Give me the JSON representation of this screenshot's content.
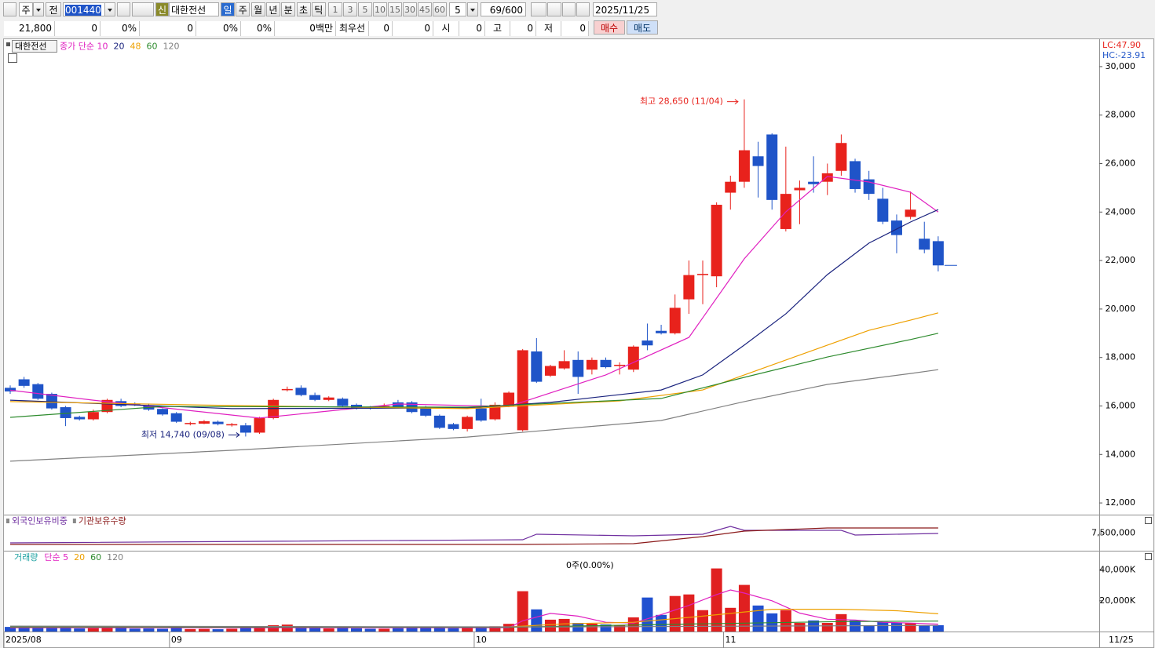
{
  "toolbar": {
    "period": "주",
    "prev": "전",
    "code": "001440",
    "new_tag": "신",
    "name": "대한전선",
    "intervals": [
      "일",
      "주",
      "월",
      "년",
      "분",
      "초",
      "틱"
    ],
    "steps": [
      "1",
      "3",
      "5",
      "10",
      "15",
      "30",
      "45",
      "60"
    ],
    "count": "5",
    "range": "69/600",
    "date": "2025/11/25"
  },
  "quote": {
    "fields": [
      "21,800",
      "0",
      "0%",
      "0",
      "0%",
      "0%",
      "0백만",
      "최우선",
      "0",
      "0",
      "시",
      "0",
      "고",
      "0",
      "저",
      "0"
    ],
    "buy": "매수",
    "sell": "매도"
  },
  "chart_data": [
    {
      "type": "candlestick",
      "legend_title": "대한전선",
      "lc": "LC:47.90",
      "hc": "HC:-23.91",
      "high_note": "최고 28,650 (11/04)",
      "low_note": "최저 14,740 (09/08)",
      "up_color": "#e8221c",
      "down_color": "#1f54c8",
      "open": [
        16750,
        17100,
        16900,
        16500,
        15950,
        15550,
        15450,
        15750,
        16200,
        16100,
        16000,
        15880,
        15700,
        15250,
        15270,
        15350,
        15200,
        15200,
        14900,
        15500,
        16650,
        16750,
        16450,
        16250,
        16300,
        16050,
        15950,
        15950,
        16150,
        16150,
        15950,
        15600,
        15250,
        15050,
        15900,
        15450,
        16000,
        15000,
        18250,
        17250,
        17550,
        17900,
        17500,
        17900,
        17650,
        17500,
        18700,
        19100,
        19000,
        20400,
        21400,
        21350,
        24800,
        25250,
        26300,
        27200,
        23300,
        24900,
        25250,
        25250,
        25700,
        26100,
        25350,
        24550,
        23650,
        23800,
        22900,
        22800
      ],
      "high": [
        16850,
        17200,
        16950,
        16550,
        16000,
        15600,
        15850,
        16300,
        16300,
        16150,
        16100,
        15900,
        15750,
        15350,
        15420,
        15400,
        15300,
        15300,
        15550,
        16300,
        16800,
        16850,
        16550,
        16400,
        16350,
        16100,
        16000,
        16100,
        16250,
        16200,
        16000,
        15650,
        15300,
        15600,
        16300,
        16150,
        16600,
        18350,
        18800,
        17700,
        18300,
        18250,
        18000,
        18000,
        17800,
        18500,
        19400,
        19350,
        20600,
        22000,
        22000,
        24400,
        25500,
        28650,
        26900,
        27250,
        26700,
        25300,
        26300,
        26000,
        27200,
        26200,
        25700,
        25000,
        23900,
        24850,
        23600,
        23000
      ],
      "low": [
        16500,
        16750,
        16250,
        15850,
        15170,
        15400,
        15400,
        15700,
        15950,
        16000,
        15800,
        15600,
        15300,
        15200,
        15250,
        15200,
        15150,
        14740,
        14850,
        15450,
        16600,
        16400,
        16200,
        16200,
        15950,
        15850,
        15850,
        15900,
        15900,
        15700,
        15550,
        15050,
        15000,
        14950,
        15350,
        15400,
        15950,
        14950,
        16950,
        17200,
        17500,
        16500,
        17300,
        17550,
        17300,
        17400,
        18300,
        18950,
        18950,
        19800,
        20200,
        20900,
        24100,
        25000,
        24600,
        24100,
        23200,
        23500,
        24800,
        24700,
        25500,
        24800,
        24500,
        23500,
        22300,
        23700,
        22300,
        21550
      ],
      "close": [
        16600,
        16830,
        16300,
        15900,
        15500,
        15450,
        15750,
        16250,
        16000,
        16050,
        15850,
        15650,
        15350,
        15300,
        15370,
        15250,
        15250,
        14900,
        15500,
        16250,
        16700,
        16450,
        16250,
        16350,
        16000,
        15900,
        15900,
        16000,
        15950,
        15750,
        15600,
        15100,
        15050,
        15550,
        15400,
        16050,
        16550,
        18300,
        17000,
        17650,
        17850,
        17200,
        17900,
        17600,
        17700,
        18450,
        18500,
        19000,
        20050,
        21400,
        21450,
        24300,
        25250,
        26550,
        25900,
        24500,
        24750,
        25000,
        25150,
        25600,
        26850,
        24950,
        24750,
        23600,
        23050,
        24100,
        22450,
        21800
      ],
      "ylim": [
        11550,
        31130
      ],
      "yticks": [
        {
          "value": 12000,
          "label": "12,000"
        },
        {
          "value": 14000,
          "label": "14,000"
        },
        {
          "value": 16000,
          "label": "16,000"
        },
        {
          "value": 18000,
          "label": "18,000"
        },
        {
          "value": 20000,
          "label": "20,000"
        },
        {
          "value": 22000,
          "label": "22,000"
        },
        {
          "value": 24000,
          "label": "24,000"
        },
        {
          "value": 26000,
          "label": "26,000"
        },
        {
          "value": 28000,
          "label": "28,000"
        },
        {
          "value": 30000,
          "label": "30,000"
        }
      ],
      "ma_series": [
        {
          "name": "종가 단순 10",
          "color": "#e020c0",
          "x": [
            0,
            6,
            18,
            28,
            36,
            43,
            49,
            53,
            56,
            59,
            62,
            65,
            67
          ],
          "values": [
            16650,
            16240,
            15500,
            16080,
            15980,
            17280,
            18830,
            22070,
            24010,
            25470,
            25240,
            24820,
            24000
          ]
        },
        {
          "name": "20",
          "color": "#1a237e",
          "x": [
            0,
            16,
            33,
            39,
            47,
            50,
            53,
            56,
            59,
            62,
            65,
            67
          ],
          "values": [
            16240,
            15890,
            15920,
            16150,
            16660,
            17280,
            18510,
            19800,
            21420,
            22720,
            23590,
            24100
          ]
        },
        {
          "name": "48",
          "color": "#eea000",
          "x": [
            0,
            16,
            33,
            44,
            50,
            53,
            59,
            62,
            65,
            67
          ],
          "values": [
            16180,
            16020,
            15890,
            16210,
            16660,
            17280,
            18510,
            19120,
            19540,
            19840
          ]
        },
        {
          "name": "60",
          "color": "#2e8b2e",
          "x": [
            0,
            11,
            33,
            47,
            53,
            59,
            65,
            67
          ],
          "values": [
            15530,
            15980,
            15950,
            16310,
            17180,
            18020,
            18740,
            19000
          ]
        },
        {
          "name": "120",
          "color": "#808080",
          "x": [
            0,
            16,
            33,
            47,
            53,
            59,
            65,
            67
          ],
          "values": [
            13720,
            14170,
            14720,
            15400,
            16180,
            16890,
            17340,
            17500
          ]
        }
      ]
    },
    {
      "type": "line",
      "ylim": [
        6500000,
        8500000
      ],
      "yticks": [
        {
          "value": 7500000,
          "label": "7,500,000"
        }
      ],
      "series": [
        {
          "name": "외국인보유비중",
          "color": "#7030a0",
          "x": [
            0,
            37,
            38,
            45,
            50,
            52,
            53,
            60,
            61,
            67
          ],
          "values": [
            6944000,
            7122000,
            7433000,
            7344000,
            7433000,
            7878000,
            7656000,
            7656000,
            7389000,
            7478000
          ]
        },
        {
          "name": "기관보유수량",
          "color": "#8b1a1a",
          "x": [
            0,
            37,
            45,
            50,
            53,
            59,
            62,
            67
          ],
          "values": [
            6856000,
            6856000,
            6900000,
            7300000,
            7611000,
            7789000,
            7789000,
            7789000
          ]
        }
      ]
    },
    {
      "type": "bar",
      "title": "거래량",
      "note": "0주(0.00%)",
      "last_date": "11/25",
      "up_color": "#e02020",
      "down_color": "#2050d0",
      "values": [
        3000,
        2800,
        2500,
        2300,
        3300,
        2000,
        2200,
        2800,
        2300,
        1900,
        2000,
        1800,
        2500,
        1600,
        1700,
        1500,
        1800,
        2600,
        3000,
        4100,
        4500,
        2900,
        2400,
        2000,
        2600,
        2100,
        1800,
        1800,
        2200,
        2500,
        2500,
        2800,
        2200,
        2600,
        2800,
        3400,
        5000,
        26200,
        14400,
        7700,
        8200,
        5600,
        5100,
        4600,
        4100,
        9200,
        22100,
        10800,
        23100,
        24100,
        13900,
        41000,
        15400,
        30300,
        16900,
        11800,
        13900,
        5600,
        7200,
        5600,
        11300,
        7200,
        4100,
        6200,
        5600,
        5600,
        4100,
        4100
      ],
      "ylim": [
        0,
        52000
      ],
      "yticks": [
        {
          "value": 20000,
          "label": "20,000K"
        },
        {
          "value": 40000,
          "label": "40,000K"
        }
      ],
      "xticks": [
        {
          "value": -0.5,
          "label": "2025/08"
        },
        {
          "value": 11.5,
          "label": "09"
        },
        {
          "value": 33.5,
          "label": "10"
        },
        {
          "value": 51.5,
          "label": "11"
        }
      ],
      "ma_series": [
        {
          "name": "단순 5",
          "color": "#e020c0",
          "x": [
            0,
            36,
            37,
            39,
            41,
            43,
            45,
            47,
            49,
            51,
            52,
            53,
            55,
            57,
            59,
            61,
            63,
            65,
            67
          ],
          "values": [
            2500,
            2500,
            7000,
            11800,
            10000,
            6000,
            5500,
            11000,
            17000,
            24000,
            27000,
            25000,
            20000,
            12000,
            8000,
            7500,
            6000,
            5500,
            4800
          ]
        },
        {
          "name": "20",
          "color": "#eea000",
          "x": [
            0,
            36,
            40,
            45,
            50,
            55,
            60,
            64,
            67
          ],
          "values": [
            3000,
            3000,
            5000,
            6000,
            10000,
            14500,
            14500,
            13500,
            11500
          ]
        },
        {
          "name": "60",
          "color": "#2e8b2e",
          "x": [
            0,
            36,
            50,
            60,
            67
          ],
          "values": [
            3000,
            2800,
            5000,
            6500,
            6800
          ]
        },
        {
          "name": "120",
          "color": "#808080",
          "x": [
            0,
            40,
            67
          ],
          "values": [
            3500,
            3000,
            4000
          ]
        }
      ]
    }
  ]
}
